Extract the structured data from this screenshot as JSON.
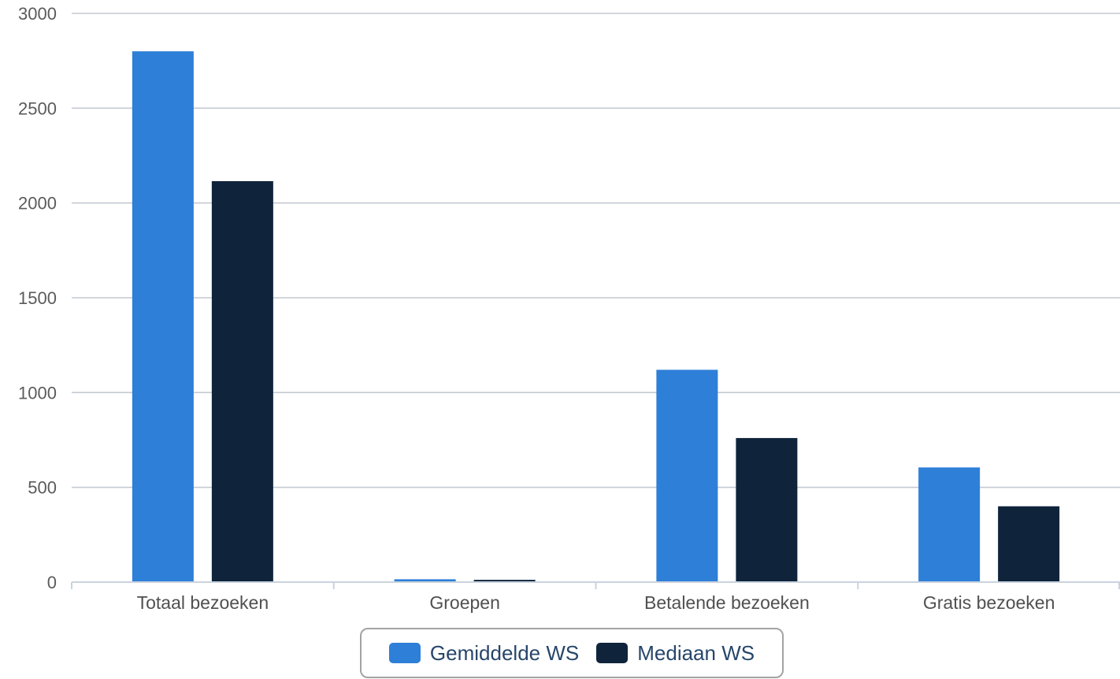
{
  "chart_data": {
    "type": "bar",
    "categories": [
      "Totaal bezoeken",
      "Groepen",
      "Betalende bezoeken",
      "Gratis bezoeken"
    ],
    "series": [
      {
        "name": "Gemiddelde WS",
        "color": "#2e7fd8",
        "values": [
          2800,
          15,
          1120,
          605
        ]
      },
      {
        "name": "Mediaan WS",
        "color": "#0f243b",
        "values": [
          2115,
          12,
          760,
          400
        ]
      }
    ],
    "ylim": [
      0,
      3000
    ],
    "yticks": [
      "0",
      "500",
      "1000",
      "1500",
      "2000",
      "2500",
      "3000"
    ],
    "grid": true,
    "legend_position": "bottom-center"
  }
}
